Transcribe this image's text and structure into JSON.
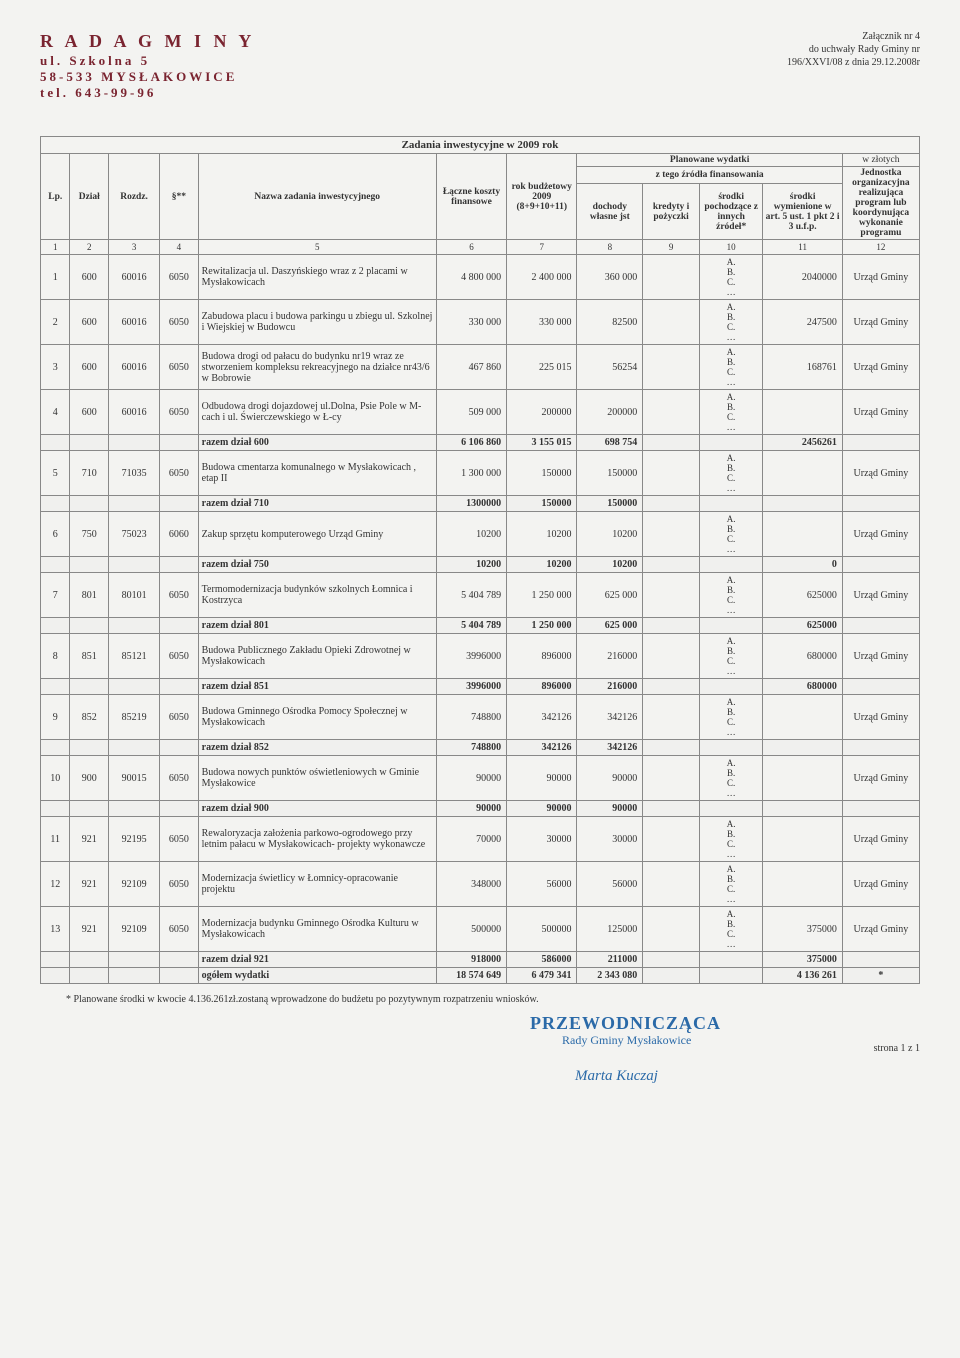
{
  "header": {
    "left": {
      "l1": "R A D A  G M I N Y",
      "l2": "ul. Szkolna 5",
      "l3": "58-533 MYSŁAKOWICE",
      "l4": "tel. 643-99-96"
    },
    "right": {
      "l1": "Załącznik nr  4",
      "l2": "do uchwały Rady Gminy nr",
      "l3": "196/XXVI/08 z dnia  29.12.2008r"
    }
  },
  "caption": "Zadania inwestycyjne w 2009 rok",
  "zloty_label": "w złotych",
  "cols": {
    "lp": "Lp.",
    "dzial": "Dział",
    "rozdz": "Rozdz.",
    "par": "§**",
    "nazwa": "Nazwa zadania inwestycyjnego",
    "laczne": "Łączne koszty finansowe",
    "rok": "rok budżetowy 2009 (8+9+10+11)",
    "plan": "Planowane wydatki",
    "ztego": "z tego źródła finansowania",
    "doch": "dochody własne jst",
    "kred": "kredyty i pożyczki",
    "srp": "środki pochodzące z innych źródeł*",
    "srw": "środki wymienione w art. 5 ust. 1 pkt 2 i 3 u.f.p.",
    "jed": "Jednostka organizacyjna realizująca program lub koordynująca wykonanie programu"
  },
  "idx": [
    "1",
    "2",
    "3",
    "4",
    "5",
    "6",
    "7",
    "8",
    "9",
    "10",
    "11",
    "12"
  ],
  "abc": "A.\nB.\nC.\n…",
  "rows": [
    {
      "lp": "1",
      "dz": "600",
      "rz": "60016",
      "par": "6050",
      "nz": "Rewitalizacja ul. Daszyńskiego  wraz z 2 placami w Mysłakowicach",
      "lk": "4 800 000",
      "rb": "2 400 000",
      "do": "360 000",
      "srw": "2040000",
      "jo": "Urząd Gminy"
    },
    {
      "lp": "2",
      "dz": "600",
      "rz": "60016",
      "par": "6050",
      "nz": "Zabudowa placu i budowa parkingu u zbiegu ul. Szkolnej i Wiejskiej w Budowcu",
      "lk": "330 000",
      "rb": "330 000",
      "do": "82500",
      "srw": "247500",
      "jo": "Urząd Gminy"
    },
    {
      "lp": "3",
      "dz": "600",
      "rz": "60016",
      "par": "6050",
      "nz": "Budowa drogi  od pałacu do budynku nr19 wraz ze stworzeniem kompleksu rekreacyjnego  na działce nr43/6 w Bobrowie",
      "lk": "467 860",
      "rb": "225 015",
      "do": "56254",
      "srw": "168761",
      "jo": "Urząd Gminy"
    },
    {
      "lp": "4",
      "dz": "600",
      "rz": "60016",
      "par": "6050",
      "nz": "Odbudowa drogi dojazdowej ul.Dolna, Psie Pole w M-cach i ul. Świerczewskiego w Ł-cy",
      "lk": "509 000",
      "rb": "200000",
      "do": "200000",
      "srw": "",
      "jo": "Urząd Gminy"
    },
    {
      "sub": true,
      "nz": "razem dział 600",
      "lk": "6 106 860",
      "rb": "3 155 015",
      "do": "698 754",
      "srw": "2456261"
    },
    {
      "lp": "5",
      "dz": "710",
      "rz": "71035",
      "par": "6050",
      "nz": "Budowa cmentarza komunalnego w Mysłakowicach , etap II",
      "lk": "1 300 000",
      "rb": "150000",
      "do": "150000",
      "srw": "",
      "jo": "Urząd Gminy"
    },
    {
      "sub": true,
      "nz": "razem dział 710",
      "lk": "1300000",
      "rb": "150000",
      "do": "150000",
      "srw": ""
    },
    {
      "lp": "6",
      "dz": "750",
      "rz": "75023",
      "par": "6060",
      "nz": "Zakup sprzętu komputerowego Urząd Gminy",
      "lk": "10200",
      "rb": "10200",
      "do": "10200",
      "srw": "",
      "jo": "Urząd Gminy"
    },
    {
      "sub": true,
      "nz": "razem dział 750",
      "lk": "10200",
      "rb": "10200",
      "do": "10200",
      "srw": "0"
    },
    {
      "lp": "7",
      "dz": "801",
      "rz": "80101",
      "par": "6050",
      "nz": "Termomodernizacja budynków szkolnych Łomnica i Kostrzyca",
      "lk": "5 404 789",
      "rb": "1 250 000",
      "do": "625 000",
      "srw": "625000",
      "jo": "Urząd Gminy"
    },
    {
      "sub": true,
      "nz": "razem dział 801",
      "lk": "5 404 789",
      "rb": "1 250 000",
      "do": "625 000",
      "srw": "625000"
    },
    {
      "lp": "8",
      "dz": "851",
      "rz": "85121",
      "par": "6050",
      "nz": "Budowa Publicznego Zakładu Opieki Zdrowotnej w Mysłakowicach",
      "lk": "3996000",
      "rb": "896000",
      "do": "216000",
      "srw": "680000",
      "jo": "Urząd Gminy"
    },
    {
      "sub": true,
      "nz": "razem dział 851",
      "lk": "3996000",
      "rb": "896000",
      "do": "216000",
      "srw": "680000"
    },
    {
      "lp": "9",
      "dz": "852",
      "rz": "85219",
      "par": "6050",
      "nz": "Budowa Gminnego Ośrodka Pomocy Społecznej w Mysłakowicach",
      "lk": "748800",
      "rb": "342126",
      "do": "342126",
      "srw": "",
      "jo": "Urząd Gminy"
    },
    {
      "sub": true,
      "nz": "razem dział 852",
      "lk": "748800",
      "rb": "342126",
      "do": "342126",
      "srw": ""
    },
    {
      "lp": "10",
      "dz": "900",
      "rz": "90015",
      "par": "6050",
      "nz": "Budowa nowych punktów oświetleniowych w Gminie Mysłakowice",
      "lk": "90000",
      "rb": "90000",
      "do": "90000",
      "srw": "",
      "jo": "Urząd Gminy"
    },
    {
      "sub": true,
      "nz": "razem dział 900",
      "lk": "90000",
      "rb": "90000",
      "do": "90000",
      "srw": ""
    },
    {
      "lp": "11",
      "dz": "921",
      "rz": "92195",
      "par": "6050",
      "nz": "Rewaloryzacja założenia parkowo-ogrodowego przy letnim pałacu w Mysłakowicach- projekty wykonawcze",
      "lk": "70000",
      "rb": "30000",
      "do": "30000",
      "srw": "",
      "jo": "Urząd Gminy"
    },
    {
      "lp": "12",
      "dz": "921",
      "rz": "92109",
      "par": "6050",
      "nz": "Modernizacja świetlicy w Łomnicy-opracowanie projektu",
      "lk": "348000",
      "rb": "56000",
      "do": "56000",
      "srw": "",
      "jo": "Urząd Gminy"
    },
    {
      "lp": "13",
      "dz": "921",
      "rz": "92109",
      "par": "6050",
      "nz": "Modernizacja budynku Gminnego Ośrodka Kulturu w Mysłakowicach",
      "lk": "500000",
      "rb": "500000",
      "do": "125000",
      "srw": "375000",
      "jo": "Urząd Gminy"
    },
    {
      "sub": true,
      "nz": "razem dział 921",
      "lk": "918000",
      "rb": "586000",
      "do": "211000",
      "srw": "375000"
    },
    {
      "og": true,
      "nz": "ogółem wydatki",
      "lk": "18 574 649",
      "rb": "6 479 341",
      "do": "2 343 080",
      "srw": "4 136 261",
      "jo": "*"
    }
  ],
  "footnote": "*        Planowane środki w kwocie 4.136.261zł.zostaną wprowadzone do budżetu po pozytywnym rozpatrzeniu wniosków.",
  "sign": {
    "pz": "PRZEWODNICZĄCA",
    "rg": "Rady Gminy Mysłakowice",
    "mk": "Marta Kuczaj",
    "pg": "strona 1 z 1"
  }
}
